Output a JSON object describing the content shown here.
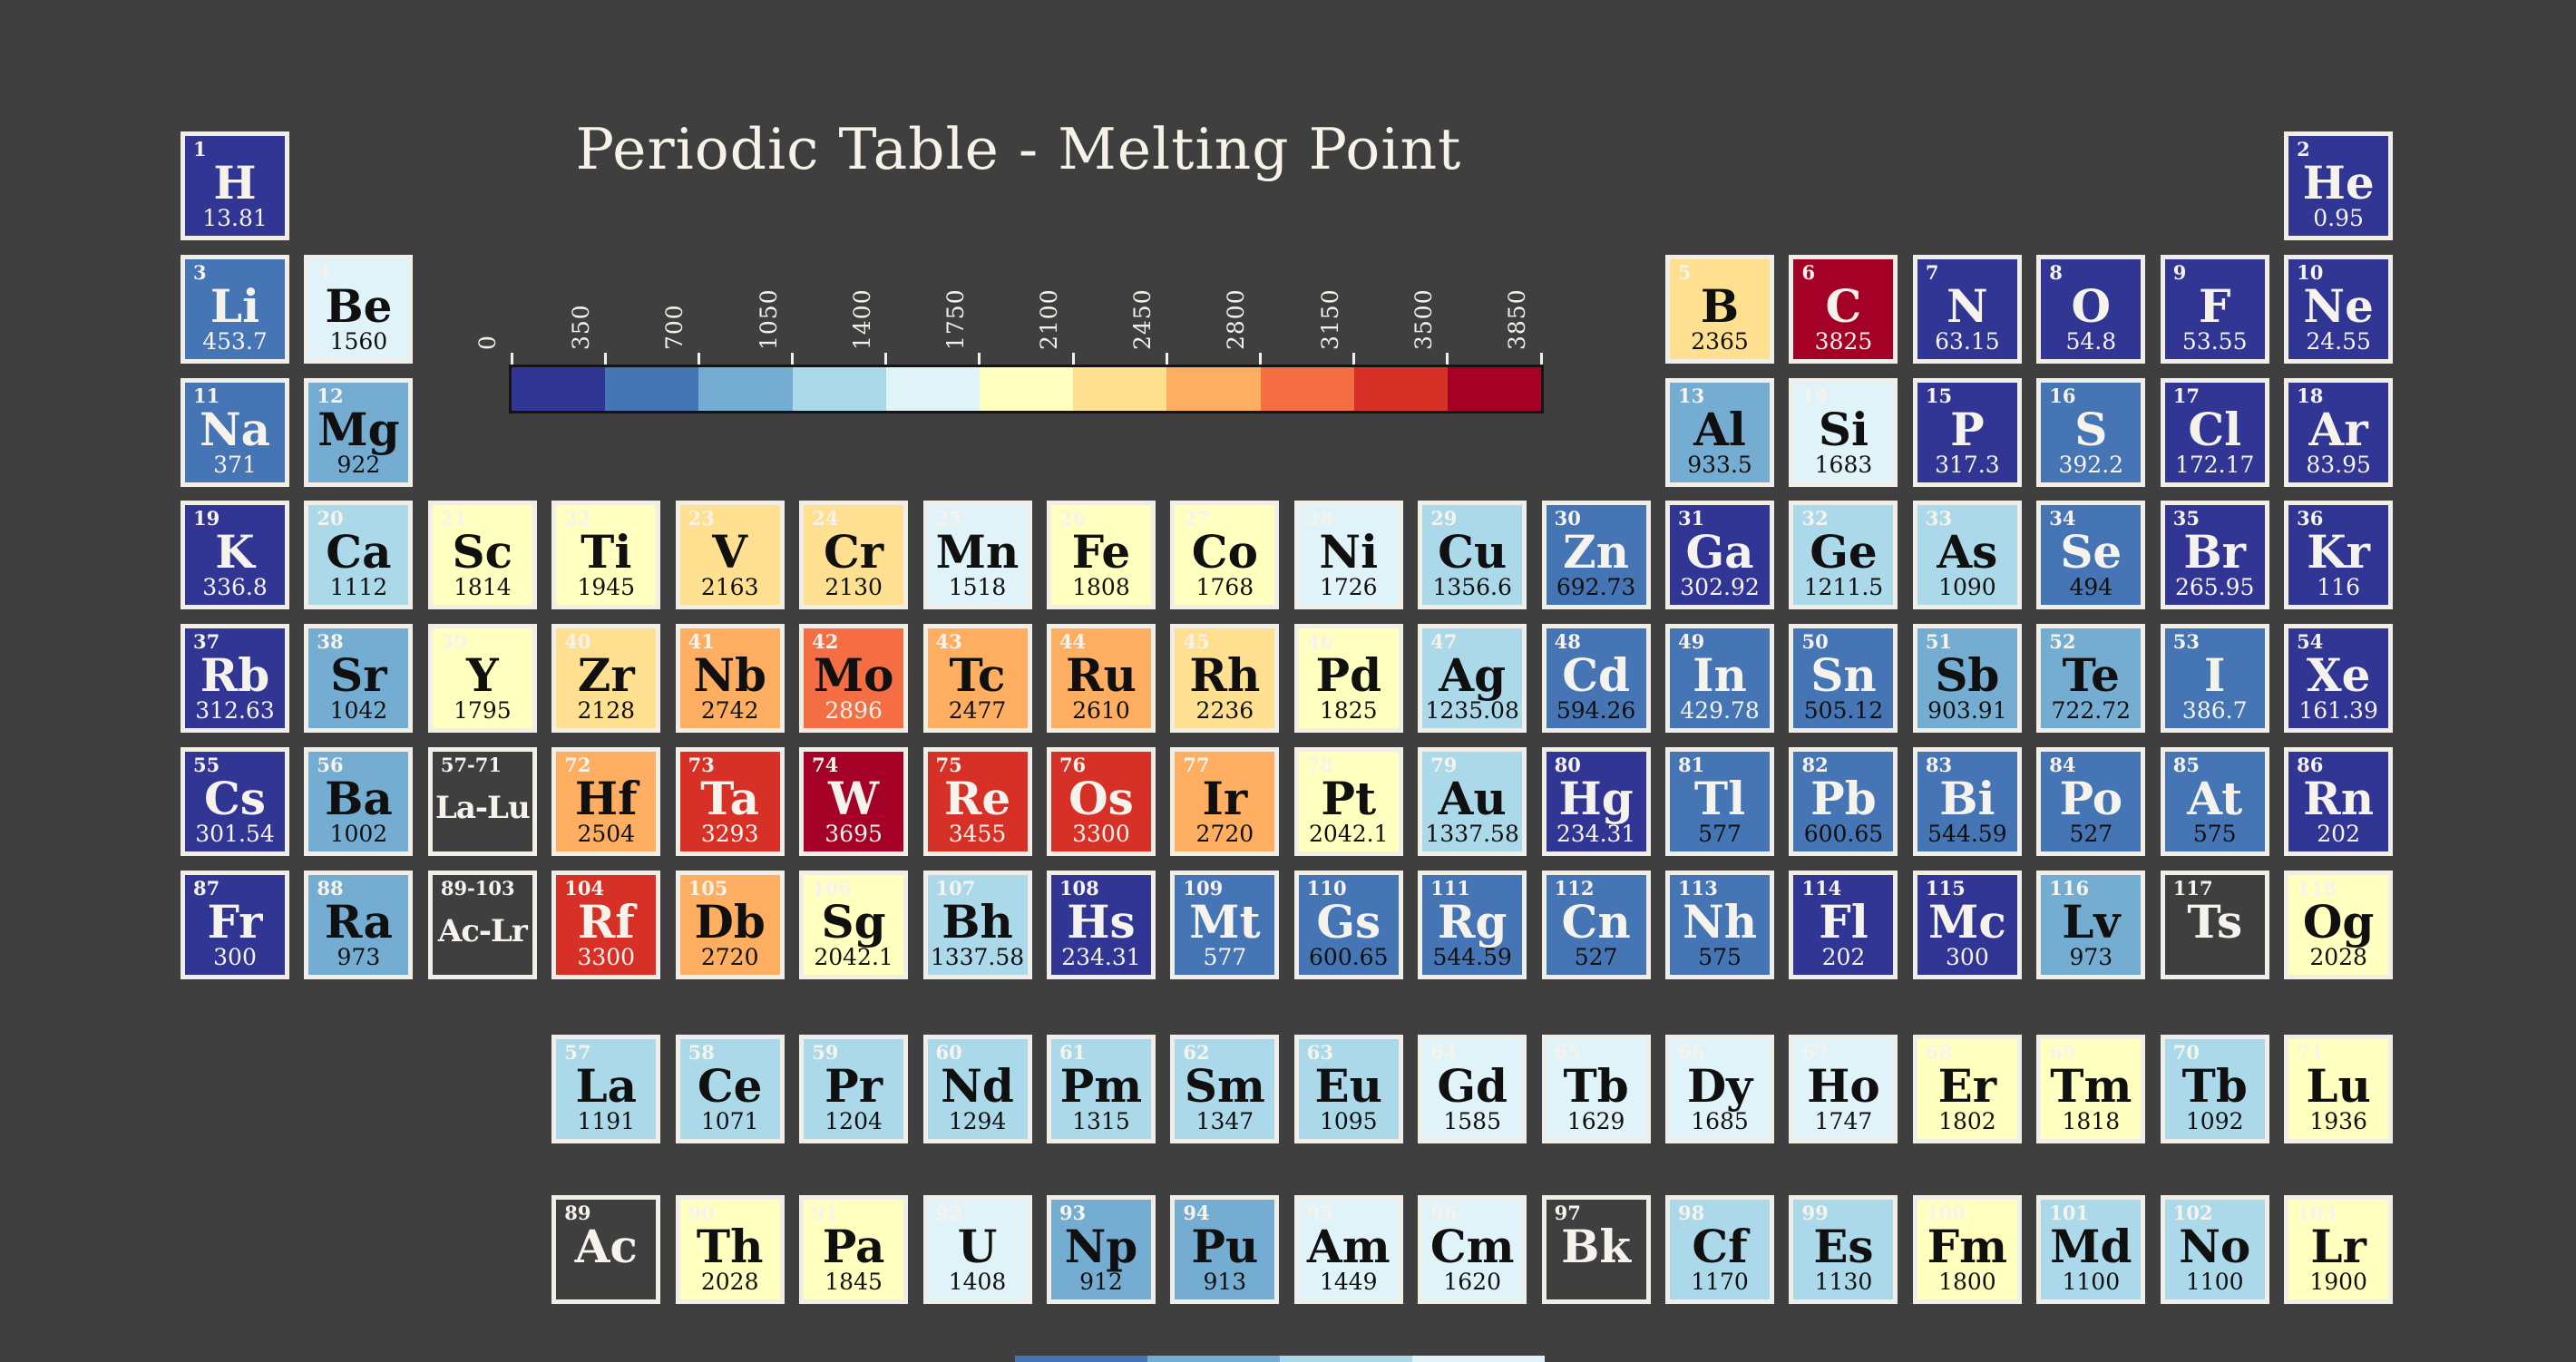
{
  "background": "#3f3f3f",
  "no_data_fill": "#3f3f3f",
  "cell_border_color": "#f1eee7",
  "text_white": "#f6f3ec",
  "text_black": "#101010",
  "chart_data": {
    "type": "heatmap",
    "title": "Periodic Table - Melting Point",
    "legend_position": "top-center",
    "colormap_note": "RdYlBu reversed, 11 discrete bins of 350 each",
    "colorbar": {
      "min": 0,
      "max": 3850,
      "bin_size": 350,
      "ticks": [
        "0",
        "350",
        "700",
        "1050",
        "1400",
        "1750",
        "2100",
        "2450",
        "2800",
        "3150",
        "3500",
        "3850"
      ],
      "segment_colors": [
        "#313695",
        "#4575b4",
        "#74add1",
        "#abd9e9",
        "#e0f3f8",
        "#ffffbf",
        "#fee090",
        "#fdae61",
        "#f46d43",
        "#d73027",
        "#a50026"
      ]
    },
    "elements": [
      {
        "n": "1",
        "sym": "H",
        "val": "13.81",
        "row": 1,
        "col": 1,
        "sc": "w",
        "vc": "w"
      },
      {
        "n": "2",
        "sym": "He",
        "val": "0.95",
        "row": 1,
        "col": 18,
        "sc": "w",
        "vc": "w"
      },
      {
        "n": "3",
        "sym": "Li",
        "val": "453.7",
        "row": 2,
        "col": 1,
        "sc": "w",
        "vc": "w"
      },
      {
        "n": "4",
        "sym": "Be",
        "val": "1560",
        "row": 2,
        "col": 2,
        "sc": "b",
        "vc": "b"
      },
      {
        "n": "5",
        "sym": "B",
        "val": "2365",
        "row": 2,
        "col": 13,
        "sc": "b",
        "vc": "b"
      },
      {
        "n": "6",
        "sym": "C",
        "val": "3825",
        "row": 2,
        "col": 14,
        "sc": "w",
        "vc": "w"
      },
      {
        "n": "7",
        "sym": "N",
        "val": "63.15",
        "row": 2,
        "col": 15,
        "sc": "w",
        "vc": "w"
      },
      {
        "n": "8",
        "sym": "O",
        "val": "54.8",
        "row": 2,
        "col": 16,
        "sc": "w",
        "vc": "w"
      },
      {
        "n": "9",
        "sym": "F",
        "val": "53.55",
        "row": 2,
        "col": 17,
        "sc": "w",
        "vc": "w"
      },
      {
        "n": "10",
        "sym": "Ne",
        "val": "24.55",
        "row": 2,
        "col": 18,
        "sc": "w",
        "vc": "w"
      },
      {
        "n": "11",
        "sym": "Na",
        "val": "371",
        "row": 3,
        "col": 1,
        "sc": "w",
        "vc": "w"
      },
      {
        "n": "12",
        "sym": "Mg",
        "val": "922",
        "row": 3,
        "col": 2,
        "sc": "b",
        "vc": "b"
      },
      {
        "n": "13",
        "sym": "Al",
        "val": "933.5",
        "row": 3,
        "col": 13,
        "sc": "b",
        "vc": "b"
      },
      {
        "n": "14",
        "sym": "Si",
        "val": "1683",
        "row": 3,
        "col": 14,
        "sc": "b",
        "vc": "b"
      },
      {
        "n": "15",
        "sym": "P",
        "val": "317.3",
        "row": 3,
        "col": 15,
        "sc": "w",
        "vc": "w"
      },
      {
        "n": "16",
        "sym": "S",
        "val": "392.2",
        "row": 3,
        "col": 16,
        "sc": "w",
        "vc": "w"
      },
      {
        "n": "17",
        "sym": "Cl",
        "val": "172.17",
        "row": 3,
        "col": 17,
        "sc": "w",
        "vc": "w"
      },
      {
        "n": "18",
        "sym": "Ar",
        "val": "83.95",
        "row": 3,
        "col": 18,
        "sc": "w",
        "vc": "w"
      },
      {
        "n": "19",
        "sym": "K",
        "val": "336.8",
        "row": 4,
        "col": 1,
        "sc": "w",
        "vc": "w"
      },
      {
        "n": "20",
        "sym": "Ca",
        "val": "1112",
        "row": 4,
        "col": 2,
        "sc": "b",
        "vc": "b"
      },
      {
        "n": "21",
        "sym": "Sc",
        "val": "1814",
        "row": 4,
        "col": 3,
        "sc": "b",
        "vc": "b"
      },
      {
        "n": "22",
        "sym": "Ti",
        "val": "1945",
        "row": 4,
        "col": 4,
        "sc": "b",
        "vc": "b"
      },
      {
        "n": "23",
        "sym": "V",
        "val": "2163",
        "row": 4,
        "col": 5,
        "sc": "b",
        "vc": "b"
      },
      {
        "n": "24",
        "sym": "Cr",
        "val": "2130",
        "row": 4,
        "col": 6,
        "sc": "b",
        "vc": "b"
      },
      {
        "n": "25",
        "sym": "Mn",
        "val": "1518",
        "row": 4,
        "col": 7,
        "sc": "b",
        "vc": "b"
      },
      {
        "n": "26",
        "sym": "Fe",
        "val": "1808",
        "row": 4,
        "col": 8,
        "sc": "b",
        "vc": "b"
      },
      {
        "n": "27",
        "sym": "Co",
        "val": "1768",
        "row": 4,
        "col": 9,
        "sc": "b",
        "vc": "b"
      },
      {
        "n": "28",
        "sym": "Ni",
        "val": "1726",
        "row": 4,
        "col": 10,
        "sc": "b",
        "vc": "b"
      },
      {
        "n": "29",
        "sym": "Cu",
        "val": "1356.6",
        "row": 4,
        "col": 11,
        "sc": "b",
        "vc": "b"
      },
      {
        "n": "30",
        "sym": "Zn",
        "val": "692.73",
        "row": 4,
        "col": 12,
        "sc": "w",
        "vc": "b"
      },
      {
        "n": "31",
        "sym": "Ga",
        "val": "302.92",
        "row": 4,
        "col": 13,
        "sc": "w",
        "vc": "w"
      },
      {
        "n": "32",
        "sym": "Ge",
        "val": "1211.5",
        "row": 4,
        "col": 14,
        "sc": "b",
        "vc": "b"
      },
      {
        "n": "33",
        "sym": "As",
        "val": "1090",
        "row": 4,
        "col": 15,
        "sc": "b",
        "vc": "b"
      },
      {
        "n": "34",
        "sym": "Se",
        "val": "494",
        "row": 4,
        "col": 16,
        "sc": "w",
        "vc": "b"
      },
      {
        "n": "35",
        "sym": "Br",
        "val": "265.95",
        "row": 4,
        "col": 17,
        "sc": "w",
        "vc": "w"
      },
      {
        "n": "36",
        "sym": "Kr",
        "val": "116",
        "row": 4,
        "col": 18,
        "sc": "w",
        "vc": "w"
      },
      {
        "n": "37",
        "sym": "Rb",
        "val": "312.63",
        "row": 5,
        "col": 1,
        "sc": "w",
        "vc": "w"
      },
      {
        "n": "38",
        "sym": "Sr",
        "val": "1042",
        "row": 5,
        "col": 2,
        "sc": "b",
        "vc": "b"
      },
      {
        "n": "39",
        "sym": "Y",
        "val": "1795",
        "row": 5,
        "col": 3,
        "sc": "b",
        "vc": "b"
      },
      {
        "n": "40",
        "sym": "Zr",
        "val": "2128",
        "row": 5,
        "col": 4,
        "sc": "b",
        "vc": "b"
      },
      {
        "n": "41",
        "sym": "Nb",
        "val": "2742",
        "row": 5,
        "col": 5,
        "sc": "b",
        "vc": "b"
      },
      {
        "n": "42",
        "sym": "Mo",
        "val": "2896",
        "row": 5,
        "col": 6,
        "sc": "b",
        "vc": "w"
      },
      {
        "n": "43",
        "sym": "Tc",
        "val": "2477",
        "row": 5,
        "col": 7,
        "sc": "b",
        "vc": "b"
      },
      {
        "n": "44",
        "sym": "Ru",
        "val": "2610",
        "row": 5,
        "col": 8,
        "sc": "b",
        "vc": "b"
      },
      {
        "n": "45",
        "sym": "Rh",
        "val": "2236",
        "row": 5,
        "col": 9,
        "sc": "b",
        "vc": "b"
      },
      {
        "n": "46",
        "sym": "Pd",
        "val": "1825",
        "row": 5,
        "col": 10,
        "sc": "b",
        "vc": "b"
      },
      {
        "n": "47",
        "sym": "Ag",
        "val": "1235.08",
        "row": 5,
        "col": 11,
        "sc": "b",
        "vc": "b"
      },
      {
        "n": "48",
        "sym": "Cd",
        "val": "594.26",
        "row": 5,
        "col": 12,
        "sc": "w",
        "vc": "b"
      },
      {
        "n": "49",
        "sym": "In",
        "val": "429.78",
        "row": 5,
        "col": 13,
        "sc": "w",
        "vc": "w"
      },
      {
        "n": "50",
        "sym": "Sn",
        "val": "505.12",
        "row": 5,
        "col": 14,
        "sc": "w",
        "vc": "b"
      },
      {
        "n": "51",
        "sym": "Sb",
        "val": "903.91",
        "row": 5,
        "col": 15,
        "sc": "b",
        "vc": "b"
      },
      {
        "n": "52",
        "sym": "Te",
        "val": "722.72",
        "row": 5,
        "col": 16,
        "sc": "b",
        "vc": "b"
      },
      {
        "n": "53",
        "sym": "I",
        "val": "386.7",
        "row": 5,
        "col": 17,
        "sc": "w",
        "vc": "w"
      },
      {
        "n": "54",
        "sym": "Xe",
        "val": "161.39",
        "row": 5,
        "col": 18,
        "sc": "w",
        "vc": "w"
      },
      {
        "n": "55",
        "sym": "Cs",
        "val": "301.54",
        "row": 6,
        "col": 1,
        "sc": "w",
        "vc": "w"
      },
      {
        "n": "56",
        "sym": "Ba",
        "val": "1002",
        "row": 6,
        "col": 2,
        "sc": "b",
        "vc": "b"
      },
      {
        "n": "57-71",
        "sym": "La-Lu",
        "val": null,
        "row": 6,
        "col": 3,
        "sc": "w",
        "vc": "w"
      },
      {
        "n": "72",
        "sym": "Hf",
        "val": "2504",
        "row": 6,
        "col": 4,
        "sc": "b",
        "vc": "b"
      },
      {
        "n": "73",
        "sym": "Ta",
        "val": "3293",
        "row": 6,
        "col": 5,
        "sc": "w",
        "vc": "w"
      },
      {
        "n": "74",
        "sym": "W",
        "val": "3695",
        "row": 6,
        "col": 6,
        "sc": "w",
        "vc": "w"
      },
      {
        "n": "75",
        "sym": "Re",
        "val": "3455",
        "row": 6,
        "col": 7,
        "sc": "w",
        "vc": "w"
      },
      {
        "n": "76",
        "sym": "Os",
        "val": "3300",
        "row": 6,
        "col": 8,
        "sc": "w",
        "vc": "w"
      },
      {
        "n": "77",
        "sym": "Ir",
        "val": "2720",
        "row": 6,
        "col": 9,
        "sc": "b",
        "vc": "b"
      },
      {
        "n": "78",
        "sym": "Pt",
        "val": "2042.1",
        "row": 6,
        "col": 10,
        "sc": "b",
        "vc": "b"
      },
      {
        "n": "79",
        "sym": "Au",
        "val": "1337.58",
        "row": 6,
        "col": 11,
        "sc": "b",
        "vc": "b"
      },
      {
        "n": "80",
        "sym": "Hg",
        "val": "234.31",
        "row": 6,
        "col": 12,
        "sc": "w",
        "vc": "w"
      },
      {
        "n": "81",
        "sym": "Tl",
        "val": "577",
        "row": 6,
        "col": 13,
        "sc": "w",
        "vc": "b"
      },
      {
        "n": "82",
        "sym": "Pb",
        "val": "600.65",
        "row": 6,
        "col": 14,
        "sc": "w",
        "vc": "b"
      },
      {
        "n": "83",
        "sym": "Bi",
        "val": "544.59",
        "row": 6,
        "col": 15,
        "sc": "w",
        "vc": "b"
      },
      {
        "n": "84",
        "sym": "Po",
        "val": "527",
        "row": 6,
        "col": 16,
        "sc": "w",
        "vc": "b"
      },
      {
        "n": "85",
        "sym": "At",
        "val": "575",
        "row": 6,
        "col": 17,
        "sc": "w",
        "vc": "b"
      },
      {
        "n": "86",
        "sym": "Rn",
        "val": "202",
        "row": 6,
        "col": 18,
        "sc": "w",
        "vc": "w"
      },
      {
        "n": "87",
        "sym": "Fr",
        "val": "300",
        "row": 7,
        "col": 1,
        "sc": "w",
        "vc": "w"
      },
      {
        "n": "88",
        "sym": "Ra",
        "val": "973",
        "row": 7,
        "col": 2,
        "sc": "b",
        "vc": "b"
      },
      {
        "n": "89-103",
        "sym": "Ac-Lr",
        "val": null,
        "row": 7,
        "col": 3,
        "sc": "w",
        "vc": "w"
      },
      {
        "n": "104",
        "sym": "Rf",
        "val": "3300",
        "row": 7,
        "col": 4,
        "sc": "w",
        "vc": "w"
      },
      {
        "n": "105",
        "sym": "Db",
        "val": "2720",
        "row": 7,
        "col": 5,
        "sc": "b",
        "vc": "b"
      },
      {
        "n": "106",
        "sym": "Sg",
        "val": "2042.1",
        "row": 7,
        "col": 6,
        "sc": "b",
        "vc": "b"
      },
      {
        "n": "107",
        "sym": "Bh",
        "val": "1337.58",
        "row": 7,
        "col": 7,
        "sc": "b",
        "vc": "b"
      },
      {
        "n": "108",
        "sym": "Hs",
        "val": "234.31",
        "row": 7,
        "col": 8,
        "sc": "w",
        "vc": "w"
      },
      {
        "n": "109",
        "sym": "Mt",
        "val": "577",
        "row": 7,
        "col": 9,
        "sc": "w",
        "vc": "w"
      },
      {
        "n": "110",
        "sym": "Gs",
        "val": "600.65",
        "row": 7,
        "col": 10,
        "sc": "w",
        "vc": "b"
      },
      {
        "n": "111",
        "sym": "Rg",
        "val": "544.59",
        "row": 7,
        "col": 11,
        "sc": "w",
        "vc": "b"
      },
      {
        "n": "112",
        "sym": "Cn",
        "val": "527",
        "row": 7,
        "col": 12,
        "sc": "w",
        "vc": "b"
      },
      {
        "n": "113",
        "sym": "Nh",
        "val": "575",
        "row": 7,
        "col": 13,
        "sc": "w",
        "vc": "b"
      },
      {
        "n": "114",
        "sym": "Fl",
        "val": "202",
        "row": 7,
        "col": 14,
        "sc": "w",
        "vc": "w"
      },
      {
        "n": "115",
        "sym": "Mc",
        "val": "300",
        "row": 7,
        "col": 15,
        "sc": "w",
        "vc": "w"
      },
      {
        "n": "116",
        "sym": "Lv",
        "val": "973",
        "row": 7,
        "col": 16,
        "sc": "b",
        "vc": "b"
      },
      {
        "n": "117",
        "sym": "Ts",
        "val": null,
        "row": 7,
        "col": 17,
        "sc": "w",
        "vc": "w"
      },
      {
        "n": "118",
        "sym": "Og",
        "val": "2028",
        "row": 7,
        "col": 18,
        "sc": "b",
        "vc": "b"
      },
      {
        "n": "57",
        "sym": "La",
        "val": "1191",
        "row": 8,
        "col": 4,
        "sc": "b",
        "vc": "b"
      },
      {
        "n": "58",
        "sym": "Ce",
        "val": "1071",
        "row": 8,
        "col": 5,
        "sc": "b",
        "vc": "b"
      },
      {
        "n": "59",
        "sym": "Pr",
        "val": "1204",
        "row": 8,
        "col": 6,
        "sc": "b",
        "vc": "b"
      },
      {
        "n": "60",
        "sym": "Nd",
        "val": "1294",
        "row": 8,
        "col": 7,
        "sc": "b",
        "vc": "b"
      },
      {
        "n": "61",
        "sym": "Pm",
        "val": "1315",
        "row": 8,
        "col": 8,
        "sc": "b",
        "vc": "b"
      },
      {
        "n": "62",
        "sym": "Sm",
        "val": "1347",
        "row": 8,
        "col": 9,
        "sc": "b",
        "vc": "b"
      },
      {
        "n": "63",
        "sym": "Eu",
        "val": "1095",
        "row": 8,
        "col": 10,
        "sc": "b",
        "vc": "b"
      },
      {
        "n": "64",
        "sym": "Gd",
        "val": "1585",
        "row": 8,
        "col": 11,
        "sc": "b",
        "vc": "b"
      },
      {
        "n": "65",
        "sym": "Tb",
        "val": "1629",
        "row": 8,
        "col": 12,
        "sc": "b",
        "vc": "b"
      },
      {
        "n": "66",
        "sym": "Dy",
        "val": "1685",
        "row": 8,
        "col": 13,
        "sc": "b",
        "vc": "b"
      },
      {
        "n": "67",
        "sym": "Ho",
        "val": "1747",
        "row": 8,
        "col": 14,
        "sc": "b",
        "vc": "b"
      },
      {
        "n": "68",
        "sym": "Er",
        "val": "1802",
        "row": 8,
        "col": 15,
        "sc": "b",
        "vc": "b"
      },
      {
        "n": "69",
        "sym": "Tm",
        "val": "1818",
        "row": 8,
        "col": 16,
        "sc": "b",
        "vc": "b"
      },
      {
        "n": "70",
        "sym": "Tb",
        "val": "1092",
        "row": 8,
        "col": 17,
        "sc": "b",
        "vc": "b"
      },
      {
        "n": "71",
        "sym": "Lu",
        "val": "1936",
        "row": 8,
        "col": 18,
        "sc": "b",
        "vc": "b"
      },
      {
        "n": "89",
        "sym": "Ac",
        "val": null,
        "row": 9,
        "col": 4,
        "sc": "w",
        "vc": "w"
      },
      {
        "n": "90",
        "sym": "Th",
        "val": "2028",
        "row": 9,
        "col": 5,
        "sc": "b",
        "vc": "b"
      },
      {
        "n": "91",
        "sym": "Pa",
        "val": "1845",
        "row": 9,
        "col": 6,
        "sc": "b",
        "vc": "b"
      },
      {
        "n": "92",
        "sym": "U",
        "val": "1408",
        "row": 9,
        "col": 7,
        "sc": "b",
        "vc": "b"
      },
      {
        "n": "93",
        "sym": "Np",
        "val": "912",
        "row": 9,
        "col": 8,
        "sc": "b",
        "vc": "b"
      },
      {
        "n": "94",
        "sym": "Pu",
        "val": "913",
        "row": 9,
        "col": 9,
        "sc": "b",
        "vc": "b"
      },
      {
        "n": "95",
        "sym": "Am",
        "val": "1449",
        "row": 9,
        "col": 10,
        "sc": "b",
        "vc": "b"
      },
      {
        "n": "96",
        "sym": "Cm",
        "val": "1620",
        "row": 9,
        "col": 11,
        "sc": "b",
        "vc": "b"
      },
      {
        "n": "97",
        "sym": "Bk",
        "val": null,
        "row": 9,
        "col": 12,
        "sc": "w",
        "vc": "w"
      },
      {
        "n": "98",
        "sym": "Cf",
        "val": "1170",
        "row": 9,
        "col": 13,
        "sc": "b",
        "vc": "b"
      },
      {
        "n": "99",
        "sym": "Es",
        "val": "1130",
        "row": 9,
        "col": 14,
        "sc": "b",
        "vc": "b"
      },
      {
        "n": "100",
        "sym": "Fm",
        "val": "1800",
        "row": 9,
        "col": 15,
        "sc": "b",
        "vc": "b"
      },
      {
        "n": "101",
        "sym": "Md",
        "val": "1100",
        "row": 9,
        "col": 16,
        "sc": "b",
        "vc": "b"
      },
      {
        "n": "102",
        "sym": "No",
        "val": "1100",
        "row": 9,
        "col": 17,
        "sc": "b",
        "vc": "b"
      },
      {
        "n": "103",
        "sym": "Lr",
        "val": "1900",
        "row": 9,
        "col": 18,
        "sc": "b",
        "vc": "b"
      }
    ]
  },
  "layout_hints": {
    "bottom_strip_colors": [
      "#4575b4",
      "#74add1",
      "#abd9e9",
      "#e0f3f8"
    ]
  }
}
